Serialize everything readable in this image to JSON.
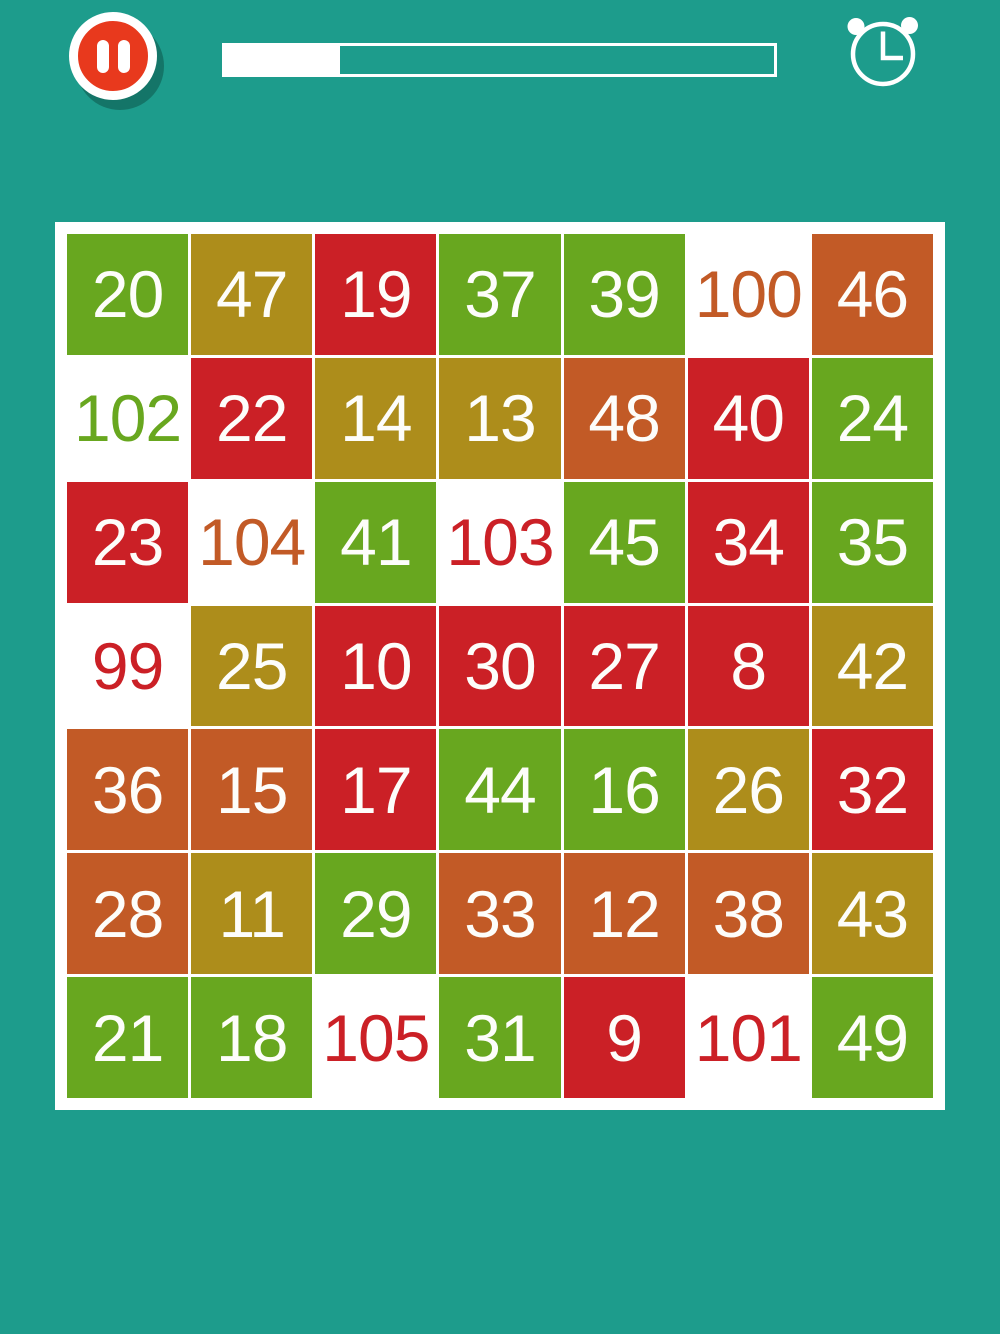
{
  "app": {
    "background_color": "#1d9c8c",
    "board_background": "#ffffff"
  },
  "toolbar": {
    "pause_button": {
      "icon": "pause-icon",
      "button_color": "#e8391d",
      "ring_color": "#ffffff"
    },
    "progress_bar": {
      "percent": 21,
      "fill_color": "#ffffff"
    },
    "timer_icon": "alarm-clock-icon"
  },
  "board": {
    "rows": 7,
    "cols": 7,
    "tile_text_color": "#fdfdfa",
    "colors": {
      "green": "#68a71f",
      "olive": "#ad8d1b",
      "red": "#cb2026",
      "orange": "#c25a26",
      "cleared": "#ffffff"
    },
    "tiles": [
      {
        "value": "20",
        "color": "green",
        "cleared": false
      },
      {
        "value": "47",
        "color": "olive",
        "cleared": false
      },
      {
        "value": "19",
        "color": "red",
        "cleared": false
      },
      {
        "value": "37",
        "color": "green",
        "cleared": false
      },
      {
        "value": "39",
        "color": "green",
        "cleared": false
      },
      {
        "value": "100",
        "color": "orange",
        "cleared": true
      },
      {
        "value": "46",
        "color": "orange",
        "cleared": false
      },
      {
        "value": "102",
        "color": "green",
        "cleared": true
      },
      {
        "value": "22",
        "color": "red",
        "cleared": false
      },
      {
        "value": "14",
        "color": "olive",
        "cleared": false
      },
      {
        "value": "13",
        "color": "olive",
        "cleared": false
      },
      {
        "value": "48",
        "color": "orange",
        "cleared": false
      },
      {
        "value": "40",
        "color": "red",
        "cleared": false
      },
      {
        "value": "24",
        "color": "green",
        "cleared": false
      },
      {
        "value": "23",
        "color": "red",
        "cleared": false
      },
      {
        "value": "104",
        "color": "orange",
        "cleared": true
      },
      {
        "value": "41",
        "color": "green",
        "cleared": false
      },
      {
        "value": "103",
        "color": "red",
        "cleared": true
      },
      {
        "value": "45",
        "color": "green",
        "cleared": false
      },
      {
        "value": "34",
        "color": "red",
        "cleared": false
      },
      {
        "value": "35",
        "color": "green",
        "cleared": false
      },
      {
        "value": "99",
        "color": "red",
        "cleared": true
      },
      {
        "value": "25",
        "color": "olive",
        "cleared": false
      },
      {
        "value": "10",
        "color": "red",
        "cleared": false
      },
      {
        "value": "30",
        "color": "red",
        "cleared": false
      },
      {
        "value": "27",
        "color": "red",
        "cleared": false
      },
      {
        "value": "8",
        "color": "red",
        "cleared": false
      },
      {
        "value": "42",
        "color": "olive",
        "cleared": false
      },
      {
        "value": "36",
        "color": "orange",
        "cleared": false
      },
      {
        "value": "15",
        "color": "orange",
        "cleared": false
      },
      {
        "value": "17",
        "color": "red",
        "cleared": false
      },
      {
        "value": "44",
        "color": "green",
        "cleared": false
      },
      {
        "value": "16",
        "color": "green",
        "cleared": false
      },
      {
        "value": "26",
        "color": "olive",
        "cleared": false
      },
      {
        "value": "32",
        "color": "red",
        "cleared": false
      },
      {
        "value": "28",
        "color": "orange",
        "cleared": false
      },
      {
        "value": "11",
        "color": "olive",
        "cleared": false
      },
      {
        "value": "29",
        "color": "green",
        "cleared": false
      },
      {
        "value": "33",
        "color": "orange",
        "cleared": false
      },
      {
        "value": "12",
        "color": "orange",
        "cleared": false
      },
      {
        "value": "38",
        "color": "orange",
        "cleared": false
      },
      {
        "value": "43",
        "color": "olive",
        "cleared": false
      },
      {
        "value": "21",
        "color": "green",
        "cleared": false
      },
      {
        "value": "18",
        "color": "green",
        "cleared": false
      },
      {
        "value": "105",
        "color": "red",
        "cleared": true
      },
      {
        "value": "31",
        "color": "green",
        "cleared": false
      },
      {
        "value": "9",
        "color": "red",
        "cleared": false
      },
      {
        "value": "101",
        "color": "red",
        "cleared": true
      },
      {
        "value": "49",
        "color": "green",
        "cleared": false
      }
    ]
  }
}
